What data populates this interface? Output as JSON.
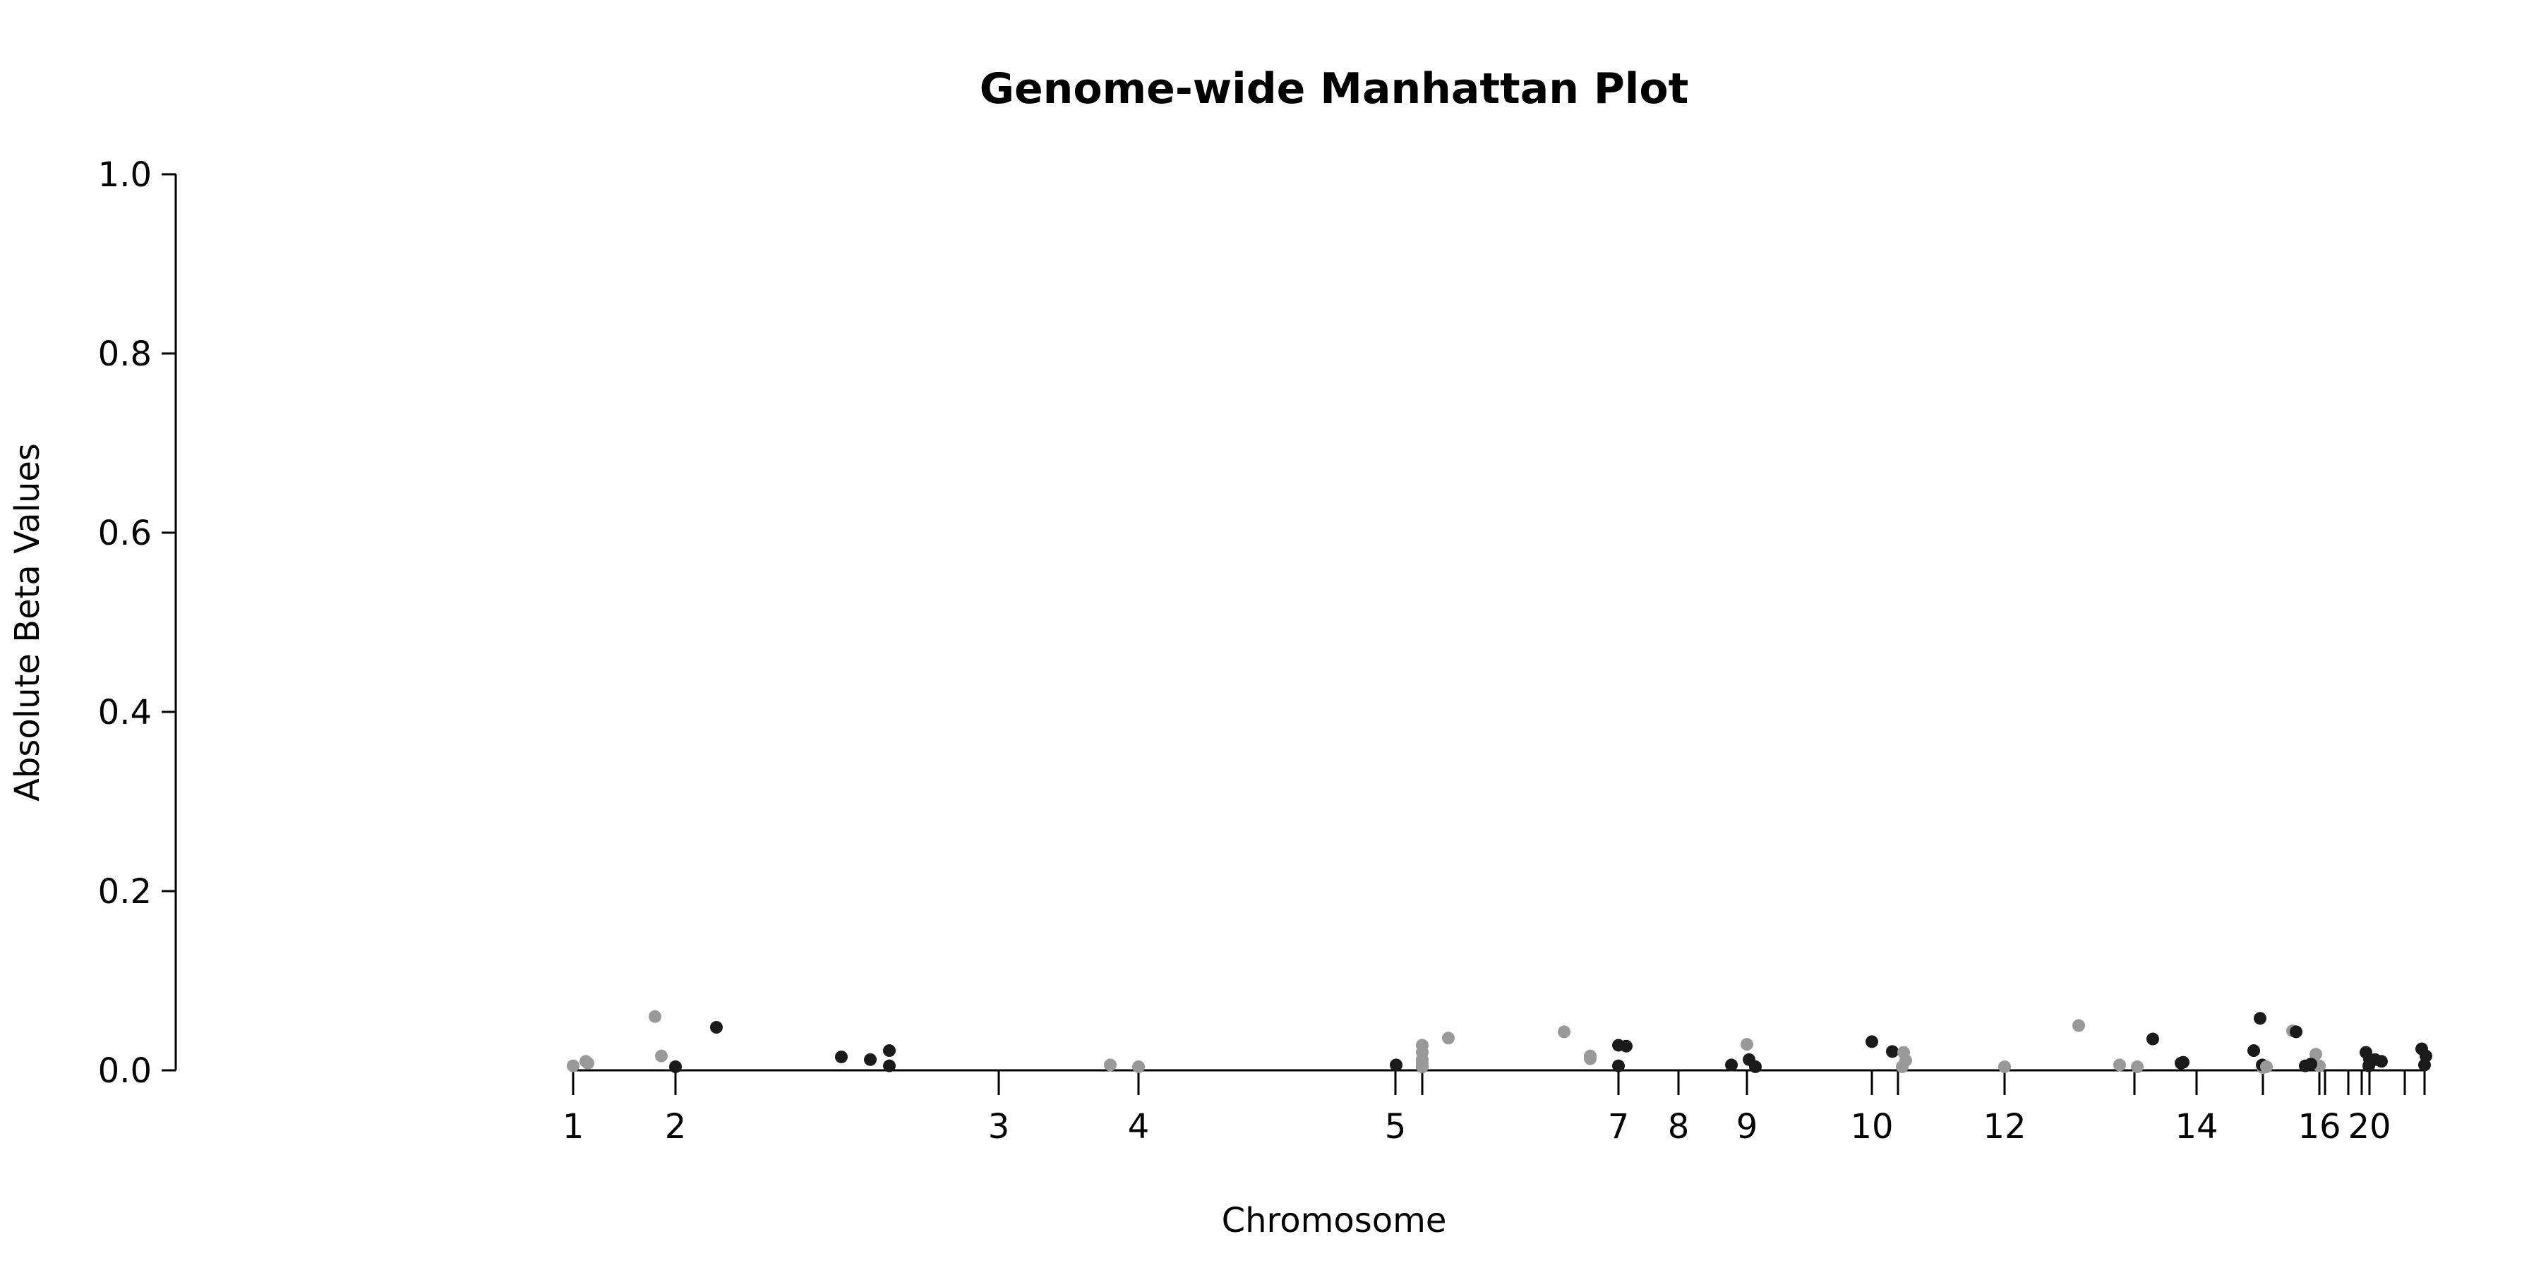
{
  "chart_data": {
    "type": "scatter",
    "title": "Genome-wide Manhattan Plot",
    "xlabel": "Chromosome",
    "ylabel": "Absolute Beta Values",
    "ylim": [
      0,
      1
    ],
    "yticks": [
      "0.0",
      "0.2",
      "0.4",
      "0.6",
      "0.8",
      "1.0"
    ],
    "grid": false,
    "legend": "none",
    "colors": {
      "odd": "#999999",
      "even": "#1a1a1a",
      "axis": "#000000"
    },
    "x_ticks": [
      {
        "chr": 1,
        "label": "1"
      },
      {
        "chr": 2,
        "label": "2"
      },
      {
        "chr": 3,
        "label": "3"
      },
      {
        "chr": 4,
        "label": "4"
      },
      {
        "chr": 5,
        "label": "5"
      },
      {
        "chr": 6,
        "label": ""
      },
      {
        "chr": 7,
        "label": "7"
      },
      {
        "chr": 8,
        "label": "8"
      },
      {
        "chr": 9,
        "label": "9"
      },
      {
        "chr": 10,
        "label": "10"
      },
      {
        "chr": 11,
        "label": ""
      },
      {
        "chr": 12,
        "label": "12"
      },
      {
        "chr": 13,
        "label": ""
      },
      {
        "chr": 14,
        "label": "14"
      },
      {
        "chr": 15,
        "label": ""
      },
      {
        "chr": 16,
        "label": "16"
      },
      {
        "chr": 17,
        "label": ""
      },
      {
        "chr": 18,
        "label": ""
      },
      {
        "chr": 19,
        "label": ""
      },
      {
        "chr": 20,
        "label": "20"
      },
      {
        "chr": 21,
        "label": ""
      },
      {
        "chr": 22,
        "label": ""
      }
    ],
    "points": [
      {
        "chr": 1,
        "y": 0.005
      },
      {
        "chr": 1,
        "y": 0.01
      },
      {
        "chr": 1,
        "y": 0.008
      },
      {
        "chr": 1,
        "y": 0.06
      },
      {
        "chr": 1,
        "y": 0.016
      },
      {
        "chr": 2,
        "y": 0.004
      },
      {
        "chr": 2,
        "y": 0.048
      },
      {
        "chr": 2,
        "y": 0.015
      },
      {
        "chr": 2,
        "y": 0.012
      },
      {
        "chr": 2,
        "y": 0.022
      },
      {
        "chr": 2,
        "y": 0.005
      },
      {
        "chr": 3,
        "y": 0.006
      },
      {
        "chr": 3,
        "y": 0.004
      },
      {
        "chr": 4,
        "y": 0.006
      },
      {
        "chr": 4,
        "y": 0.004
      },
      {
        "chr": 5,
        "y": 0.004
      },
      {
        "chr": 5,
        "y": 0.008
      },
      {
        "chr": 5,
        "y": 0.012
      },
      {
        "chr": 5,
        "y": 0.02
      },
      {
        "chr": 5,
        "y": 0.028
      },
      {
        "chr": 5,
        "y": 0.036
      },
      {
        "chr": 5,
        "y": 0.043
      },
      {
        "chr": 5,
        "y": 0.016
      },
      {
        "chr": 5,
        "y": 0.013
      },
      {
        "chr": 6,
        "y": 0.005
      },
      {
        "chr": 6,
        "y": 0.028
      },
      {
        "chr": 6,
        "y": 0.027
      },
      {
        "chr": 6,
        "y": 0.006
      },
      {
        "chr": 7,
        "y": 0.029
      },
      {
        "chr": 8,
        "y": 0.012
      },
      {
        "chr": 8,
        "y": 0.004
      },
      {
        "chr": 8,
        "y": 0.032
      },
      {
        "chr": 8,
        "y": 0.021
      },
      {
        "chr": 9,
        "y": 0.004
      },
      {
        "chr": 9,
        "y": 0.011
      },
      {
        "chr": 9,
        "y": 0.02
      },
      {
        "chr": 9,
        "y": 0.004
      },
      {
        "chr": 9,
        "y": 0.05
      },
      {
        "chr": 9,
        "y": 0.006
      },
      {
        "chr": 11,
        "y": 0.004
      },
      {
        "chr": 12,
        "y": 0.035
      },
      {
        "chr": 12,
        "y": 0.008
      },
      {
        "chr": 12,
        "y": 0.009
      },
      {
        "chr": 13,
        "y": 0.003
      },
      {
        "chr": 14,
        "y": 0.022
      },
      {
        "chr": 14,
        "y": 0.006
      },
      {
        "chr": 14,
        "y": 0.058
      },
      {
        "chr": 15,
        "y": 0.004
      },
      {
        "chr": 15,
        "y": 0.044
      },
      {
        "chr": 16,
        "y": 0.043
      },
      {
        "chr": 16,
        "y": 0.005
      },
      {
        "chr": 17,
        "y": 0.005
      },
      {
        "chr": 17,
        "y": 0.018
      },
      {
        "chr": 18,
        "y": 0.007
      },
      {
        "chr": 18,
        "y": 0.012
      },
      {
        "chr": 20,
        "y": 0.02
      },
      {
        "chr": 20,
        "y": 0.01
      },
      {
        "chr": 20,
        "y": 0.005
      },
      {
        "chr": 20,
        "y": 0.012
      },
      {
        "chr": 20,
        "y": 0.006
      },
      {
        "chr": 22,
        "y": 0.024
      },
      {
        "chr": 22,
        "y": 0.016
      }
    ]
  }
}
